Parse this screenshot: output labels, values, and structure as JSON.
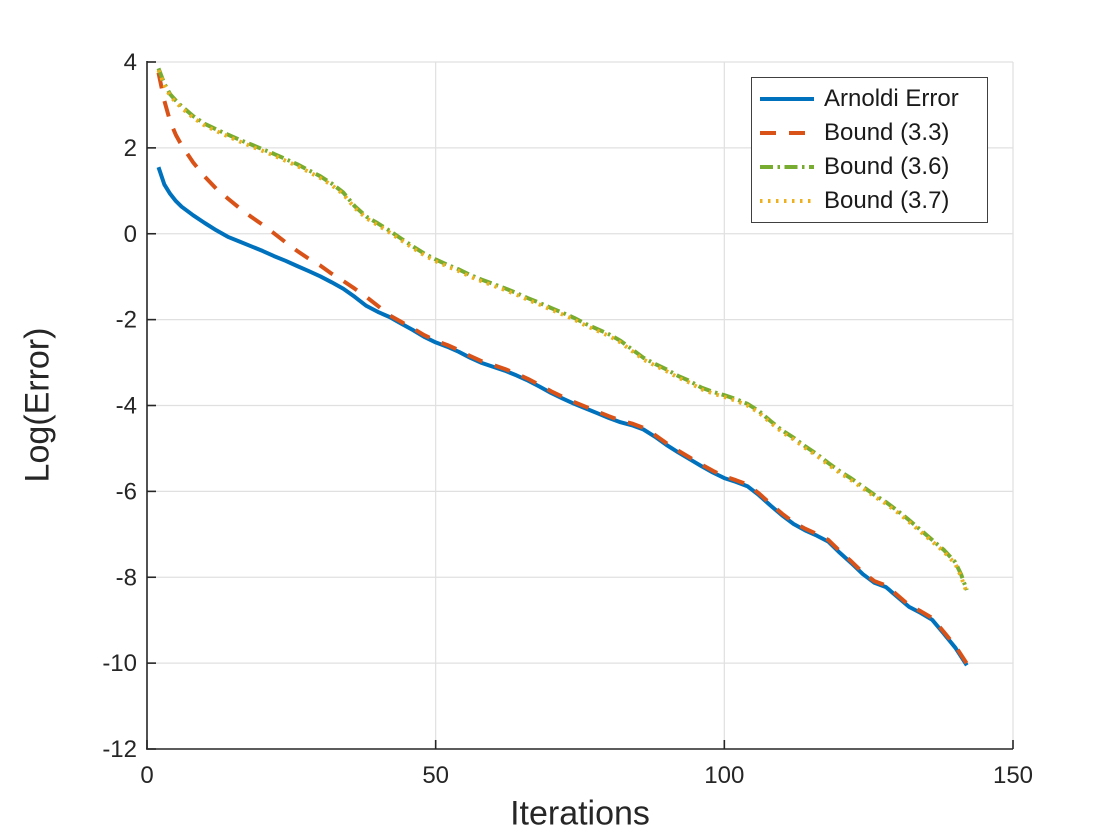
{
  "figure": {
    "background": "#ffffff",
    "axis_color": "#262626",
    "grid_color": "#e0e0e0",
    "legend_border_color": "#404040"
  },
  "chart_data": {
    "type": "line",
    "title": "",
    "xlabel": "Iterations",
    "ylabel": "Log(Error)",
    "xlim": [
      0,
      150
    ],
    "ylim": [
      -12,
      4
    ],
    "xticks": [
      0,
      50,
      100,
      150
    ],
    "yticks": [
      -12,
      -10,
      -8,
      -6,
      -4,
      -2,
      0,
      2,
      4
    ],
    "grid": true,
    "legend_position": "top-right",
    "series": [
      {
        "name": "Arnoldi Error",
        "color": "#0072BD",
        "style": "solid",
        "points": [
          [
            2,
            1.55
          ],
          [
            3,
            1.15
          ],
          [
            4,
            0.93
          ],
          [
            5,
            0.76
          ],
          [
            6,
            0.63
          ],
          [
            8,
            0.43
          ],
          [
            10,
            0.25
          ],
          [
            12,
            0.08
          ],
          [
            14,
            -0.07
          ],
          [
            16,
            -0.18
          ],
          [
            18,
            -0.29
          ],
          [
            20,
            -0.4
          ],
          [
            22,
            -0.52
          ],
          [
            24,
            -0.63
          ],
          [
            26,
            -0.75
          ],
          [
            28,
            -0.87
          ],
          [
            30,
            -0.99
          ],
          [
            32,
            -1.13
          ],
          [
            34,
            -1.28
          ],
          [
            36,
            -1.47
          ],
          [
            38,
            -1.68
          ],
          [
            40,
            -1.82
          ],
          [
            42,
            -1.94
          ],
          [
            44,
            -2.09
          ],
          [
            46,
            -2.24
          ],
          [
            48,
            -2.4
          ],
          [
            50,
            -2.53
          ],
          [
            52,
            -2.63
          ],
          [
            54,
            -2.75
          ],
          [
            56,
            -2.89
          ],
          [
            58,
            -3.01
          ],
          [
            60,
            -3.1
          ],
          [
            62,
            -3.19
          ],
          [
            64,
            -3.3
          ],
          [
            66,
            -3.42
          ],
          [
            68,
            -3.56
          ],
          [
            70,
            -3.71
          ],
          [
            72,
            -3.84
          ],
          [
            74,
            -3.96
          ],
          [
            76,
            -4.07
          ],
          [
            78,
            -4.18
          ],
          [
            80,
            -4.29
          ],
          [
            82,
            -4.39
          ],
          [
            84,
            -4.46
          ],
          [
            86,
            -4.56
          ],
          [
            88,
            -4.73
          ],
          [
            90,
            -4.92
          ],
          [
            92,
            -5.09
          ],
          [
            94,
            -5.25
          ],
          [
            96,
            -5.41
          ],
          [
            98,
            -5.56
          ],
          [
            100,
            -5.69
          ],
          [
            102,
            -5.78
          ],
          [
            104,
            -5.88
          ],
          [
            106,
            -6.09
          ],
          [
            108,
            -6.33
          ],
          [
            110,
            -6.56
          ],
          [
            112,
            -6.76
          ],
          [
            114,
            -6.91
          ],
          [
            116,
            -7.03
          ],
          [
            118,
            -7.17
          ],
          [
            120,
            -7.43
          ],
          [
            122,
            -7.67
          ],
          [
            124,
            -7.93
          ],
          [
            126,
            -8.13
          ],
          [
            128,
            -8.23
          ],
          [
            130,
            -8.46
          ],
          [
            132,
            -8.69
          ],
          [
            134,
            -8.83
          ],
          [
            136,
            -8.99
          ],
          [
            138,
            -9.31
          ],
          [
            140,
            -9.64
          ],
          [
            142,
            -10.05
          ]
        ]
      },
      {
        "name": "Bound (3.3)",
        "color": "#D95319",
        "style": "dashed",
        "points": [
          [
            2,
            3.75
          ],
          [
            3,
            3.1
          ],
          [
            4,
            2.62
          ],
          [
            5,
            2.3
          ],
          [
            6,
            2.06
          ],
          [
            8,
            1.66
          ],
          [
            10,
            1.33
          ],
          [
            12,
            1.05
          ],
          [
            14,
            0.82
          ],
          [
            16,
            0.6
          ],
          [
            18,
            0.4
          ],
          [
            20,
            0.21
          ],
          [
            22,
            0.01
          ],
          [
            24,
            -0.2
          ],
          [
            26,
            -0.4
          ],
          [
            28,
            -0.58
          ],
          [
            30,
            -0.74
          ],
          [
            32,
            -0.93
          ],
          [
            34,
            -1.1
          ],
          [
            36,
            -1.28
          ],
          [
            38,
            -1.47
          ],
          [
            40,
            -1.68
          ],
          [
            42,
            -1.9
          ],
          [
            44,
            -2.05
          ],
          [
            46,
            -2.2
          ],
          [
            48,
            -2.36
          ],
          [
            50,
            -2.49
          ],
          [
            52,
            -2.59
          ],
          [
            54,
            -2.71
          ],
          [
            56,
            -2.85
          ],
          [
            58,
            -2.97
          ],
          [
            60,
            -3.06
          ],
          [
            62,
            -3.15
          ],
          [
            64,
            -3.26
          ],
          [
            66,
            -3.38
          ],
          [
            68,
            -3.52
          ],
          [
            70,
            -3.67
          ],
          [
            72,
            -3.8
          ],
          [
            74,
            -3.92
          ],
          [
            76,
            -4.03
          ],
          [
            78,
            -4.14
          ],
          [
            80,
            -4.25
          ],
          [
            82,
            -4.35
          ],
          [
            84,
            -4.42
          ],
          [
            86,
            -4.52
          ],
          [
            88,
            -4.69
          ],
          [
            90,
            -4.88
          ],
          [
            92,
            -5.05
          ],
          [
            94,
            -5.21
          ],
          [
            96,
            -5.37
          ],
          [
            98,
            -5.52
          ],
          [
            100,
            -5.65
          ],
          [
            102,
            -5.74
          ],
          [
            104,
            -5.84
          ],
          [
            106,
            -6.05
          ],
          [
            108,
            -6.29
          ],
          [
            110,
            -6.52
          ],
          [
            112,
            -6.72
          ],
          [
            114,
            -6.87
          ],
          [
            116,
            -6.99
          ],
          [
            118,
            -7.13
          ],
          [
            120,
            -7.39
          ],
          [
            122,
            -7.63
          ],
          [
            124,
            -7.89
          ],
          [
            126,
            -8.09
          ],
          [
            128,
            -8.19
          ],
          [
            130,
            -8.42
          ],
          [
            132,
            -8.65
          ],
          [
            134,
            -8.79
          ],
          [
            136,
            -8.95
          ],
          [
            138,
            -9.27
          ],
          [
            140,
            -9.6
          ],
          [
            142,
            -10.01
          ]
        ]
      },
      {
        "name": "Bound (3.6)",
        "color": "#77AC30",
        "style": "dashdot",
        "points": [
          [
            2,
            3.85
          ],
          [
            3,
            3.5
          ],
          [
            4,
            3.25
          ],
          [
            5,
            3.1
          ],
          [
            6,
            2.97
          ],
          [
            8,
            2.74
          ],
          [
            10,
            2.56
          ],
          [
            12,
            2.43
          ],
          [
            14,
            2.31
          ],
          [
            16,
            2.19
          ],
          [
            18,
            2.08
          ],
          [
            20,
            1.97
          ],
          [
            22,
            1.86
          ],
          [
            24,
            1.74
          ],
          [
            26,
            1.62
          ],
          [
            28,
            1.48
          ],
          [
            30,
            1.34
          ],
          [
            32,
            1.17
          ],
          [
            34,
            0.96
          ],
          [
            36,
            0.64
          ],
          [
            38,
            0.4
          ],
          [
            40,
            0.24
          ],
          [
            42,
            0.07
          ],
          [
            44,
            -0.11
          ],
          [
            46,
            -0.29
          ],
          [
            48,
            -0.46
          ],
          [
            50,
            -0.6
          ],
          [
            52,
            -0.72
          ],
          [
            54,
            -0.83
          ],
          [
            56,
            -0.96
          ],
          [
            58,
            -1.07
          ],
          [
            60,
            -1.17
          ],
          [
            62,
            -1.27
          ],
          [
            64,
            -1.38
          ],
          [
            66,
            -1.5
          ],
          [
            68,
            -1.61
          ],
          [
            70,
            -1.73
          ],
          [
            72,
            -1.84
          ],
          [
            74,
            -1.96
          ],
          [
            76,
            -2.1
          ],
          [
            78,
            -2.22
          ],
          [
            80,
            -2.34
          ],
          [
            82,
            -2.49
          ],
          [
            84,
            -2.69
          ],
          [
            86,
            -2.89
          ],
          [
            88,
            -3.03
          ],
          [
            90,
            -3.16
          ],
          [
            92,
            -3.31
          ],
          [
            94,
            -3.43
          ],
          [
            96,
            -3.58
          ],
          [
            98,
            -3.68
          ],
          [
            100,
            -3.76
          ],
          [
            102,
            -3.85
          ],
          [
            104,
            -3.96
          ],
          [
            106,
            -4.13
          ],
          [
            108,
            -4.36
          ],
          [
            110,
            -4.58
          ],
          [
            112,
            -4.75
          ],
          [
            114,
            -4.95
          ],
          [
            116,
            -5.13
          ],
          [
            118,
            -5.34
          ],
          [
            120,
            -5.53
          ],
          [
            122,
            -5.7
          ],
          [
            124,
            -5.89
          ],
          [
            126,
            -6.08
          ],
          [
            128,
            -6.25
          ],
          [
            130,
            -6.45
          ],
          [
            132,
            -6.67
          ],
          [
            134,
            -6.9
          ],
          [
            136,
            -7.13
          ],
          [
            138,
            -7.36
          ],
          [
            140,
            -7.65
          ],
          [
            141,
            -7.93
          ],
          [
            142,
            -8.3
          ]
        ]
      },
      {
        "name": "Bound (3.7)",
        "color": "#EDB120",
        "style": "dotted",
        "points": [
          [
            2,
            3.81
          ],
          [
            3,
            3.46
          ],
          [
            4,
            3.21
          ],
          [
            5,
            3.06
          ],
          [
            6,
            2.93
          ],
          [
            8,
            2.7
          ],
          [
            10,
            2.52
          ],
          [
            12,
            2.39
          ],
          [
            14,
            2.27
          ],
          [
            16,
            2.15
          ],
          [
            18,
            2.04
          ],
          [
            20,
            1.93
          ],
          [
            22,
            1.82
          ],
          [
            24,
            1.7
          ],
          [
            26,
            1.58
          ],
          [
            28,
            1.44
          ],
          [
            30,
            1.3
          ],
          [
            32,
            1.13
          ],
          [
            34,
            0.92
          ],
          [
            36,
            0.6
          ],
          [
            38,
            0.36
          ],
          [
            40,
            0.2
          ],
          [
            42,
            0.03
          ],
          [
            44,
            -0.15
          ],
          [
            46,
            -0.33
          ],
          [
            48,
            -0.5
          ],
          [
            50,
            -0.64
          ],
          [
            52,
            -0.76
          ],
          [
            54,
            -0.87
          ],
          [
            56,
            -1.0
          ],
          [
            58,
            -1.11
          ],
          [
            60,
            -1.21
          ],
          [
            62,
            -1.31
          ],
          [
            64,
            -1.42
          ],
          [
            66,
            -1.54
          ],
          [
            68,
            -1.65
          ],
          [
            70,
            -1.77
          ],
          [
            72,
            -1.88
          ],
          [
            74,
            -2.0
          ],
          [
            76,
            -2.14
          ],
          [
            78,
            -2.26
          ],
          [
            80,
            -2.38
          ],
          [
            82,
            -2.53
          ],
          [
            84,
            -2.73
          ],
          [
            86,
            -2.93
          ],
          [
            88,
            -3.07
          ],
          [
            90,
            -3.2
          ],
          [
            92,
            -3.35
          ],
          [
            94,
            -3.47
          ],
          [
            96,
            -3.62
          ],
          [
            98,
            -3.72
          ],
          [
            100,
            -3.8
          ],
          [
            102,
            -3.89
          ],
          [
            104,
            -4.0
          ],
          [
            106,
            -4.17
          ],
          [
            108,
            -4.4
          ],
          [
            110,
            -4.62
          ],
          [
            112,
            -4.79
          ],
          [
            114,
            -4.99
          ],
          [
            116,
            -5.17
          ],
          [
            118,
            -5.38
          ],
          [
            120,
            -5.57
          ],
          [
            122,
            -5.74
          ],
          [
            124,
            -5.93
          ],
          [
            126,
            -6.12
          ],
          [
            128,
            -6.29
          ],
          [
            130,
            -6.49
          ],
          [
            132,
            -6.71
          ],
          [
            134,
            -6.94
          ],
          [
            136,
            -7.17
          ],
          [
            138,
            -7.4
          ],
          [
            140,
            -7.69
          ],
          [
            141,
            -7.98
          ],
          [
            142,
            -8.36
          ]
        ]
      }
    ]
  }
}
